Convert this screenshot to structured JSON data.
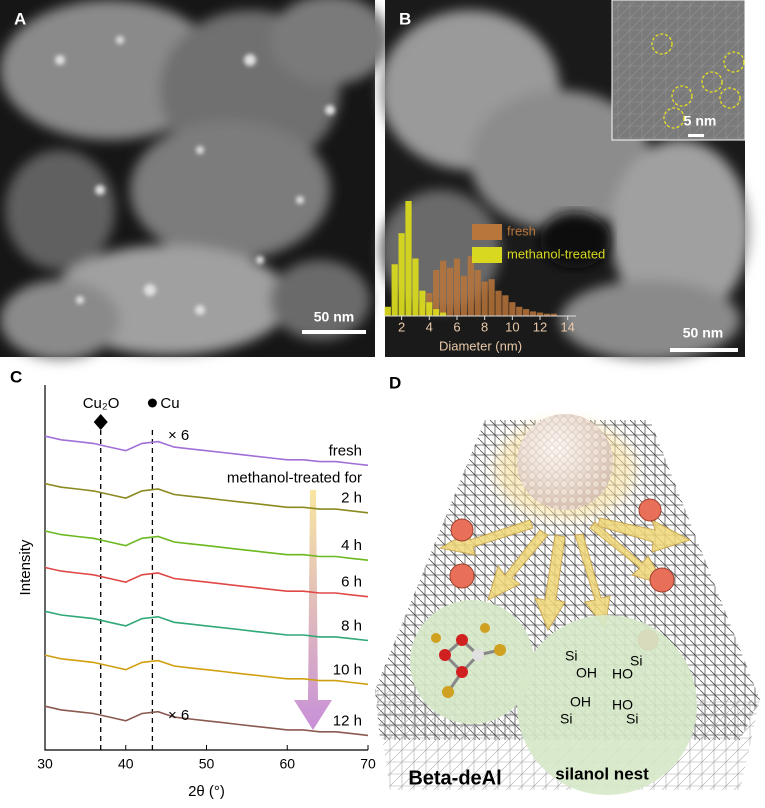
{
  "panels": {
    "a": {
      "label": "A",
      "scale_bar": "50 nm"
    },
    "b": {
      "label": "B",
      "scale_bar": "50 nm",
      "inset_scale_bar": "5 nm"
    },
    "d": {
      "label": "D",
      "catalyst": "Beta-deAl",
      "nest": "silanol nest",
      "chem": [
        "Si",
        "OH",
        "Si",
        "HO",
        "Si",
        "OH",
        "HO",
        "Si"
      ]
    }
  },
  "chart_data": [
    {
      "type": "bar",
      "xlabel": "Diameter (nm)",
      "xlim": [
        0.8,
        14.6
      ],
      "xticks": [
        2,
        4,
        6,
        8,
        10,
        12,
        14
      ],
      "ylim": [
        0,
        100
      ],
      "series": [
        {
          "name": "fresh",
          "color": "#b8763a",
          "x": [
            3.5,
            4.0,
            4.5,
            5.0,
            5.5,
            6.0,
            6.5,
            7.0,
            7.5,
            8.0,
            8.5,
            9.0,
            9.5,
            10.0,
            10.5,
            11.0,
            11.5,
            12.0,
            12.5,
            13.0
          ],
          "values": [
            10,
            20,
            40,
            48,
            42,
            50,
            35,
            52,
            40,
            30,
            32,
            22,
            18,
            12,
            8,
            6,
            4,
            3,
            2,
            2
          ]
        },
        {
          "name": "methanol-treated",
          "color": "#d8d820",
          "x": [
            1.0,
            1.5,
            2.0,
            2.5,
            3.0,
            3.5,
            4.0,
            4.5,
            5.0
          ],
          "values": [
            8,
            45,
            72,
            100,
            50,
            22,
            12,
            6,
            3
          ]
        }
      ]
    },
    {
      "type": "line",
      "label": "C",
      "xlabel": "2θ (°)",
      "ylabel": "Intensity",
      "series_header": "methanol-treated for",
      "xlim": [
        30,
        70
      ],
      "xticks": [
        30,
        40,
        50,
        60,
        70
      ],
      "ylim": [
        0,
        100
      ],
      "reference_lines": [
        {
          "label": "Cu₂O",
          "x": 36.9
        },
        {
          "label": "Cu",
          "x": 43.3
        }
      ],
      "annotations": [
        "× 6",
        "× 6"
      ],
      "x": [
        30,
        32,
        34,
        36,
        38,
        40,
        42,
        44,
        46,
        48,
        50,
        52,
        54,
        56,
        58,
        60,
        62,
        64,
        66,
        68,
        70
      ],
      "series": [
        {
          "name": "fresh",
          "color": "#a070d8",
          "values": [
            86,
            85,
            84.5,
            84,
            83,
            82,
            84,
            84.5,
            83,
            82.5,
            82,
            81.5,
            81,
            80.5,
            80,
            79.5,
            79.5,
            79,
            79,
            78.5,
            78
          ]
        },
        {
          "name": "2 h",
          "color": "#8a8a20",
          "values": [
            73,
            72,
            71.5,
            71,
            70,
            69,
            71,
            71.5,
            70,
            69.5,
            69,
            68.5,
            68,
            67.5,
            67,
            66.5,
            66.5,
            66,
            66,
            65.5,
            65
          ]
        },
        {
          "name": "4 h",
          "color": "#6cb820",
          "values": [
            60,
            59,
            58.5,
            58,
            57,
            56,
            58,
            58.5,
            57,
            56.5,
            56,
            55.5,
            55,
            54.5,
            54,
            53.5,
            53.5,
            53,
            53,
            52.5,
            52
          ]
        },
        {
          "name": "6 h",
          "color": "#e04848",
          "values": [
            50,
            49,
            48.5,
            48,
            47,
            46,
            48,
            48.5,
            47,
            46.5,
            46,
            45.5,
            45,
            44.5,
            44,
            43.5,
            43.5,
            43,
            43,
            42.5,
            42
          ]
        },
        {
          "name": "8 h",
          "color": "#30a878",
          "values": [
            38,
            37,
            36.5,
            36,
            35,
            34,
            36,
            36.5,
            35,
            34.5,
            34,
            33.5,
            33,
            32.5,
            32,
            31.5,
            31.5,
            31,
            31,
            30.5,
            30
          ]
        },
        {
          "name": "10 h",
          "color": "#d0a010",
          "values": [
            26,
            25,
            24.5,
            24,
            23,
            22,
            24,
            24.5,
            23,
            22.5,
            22,
            21.5,
            21,
            20.5,
            20,
            19.5,
            19.5,
            19,
            19,
            18.5,
            18
          ]
        },
        {
          "name": "12 h",
          "color": "#8a5a50",
          "values": [
            12,
            11,
            10.5,
            10,
            9,
            8,
            10,
            10.5,
            9,
            8.5,
            8,
            7.5,
            7,
            6.5,
            6,
            5.5,
            5.5,
            5,
            5,
            4.5,
            4
          ]
        }
      ]
    }
  ]
}
